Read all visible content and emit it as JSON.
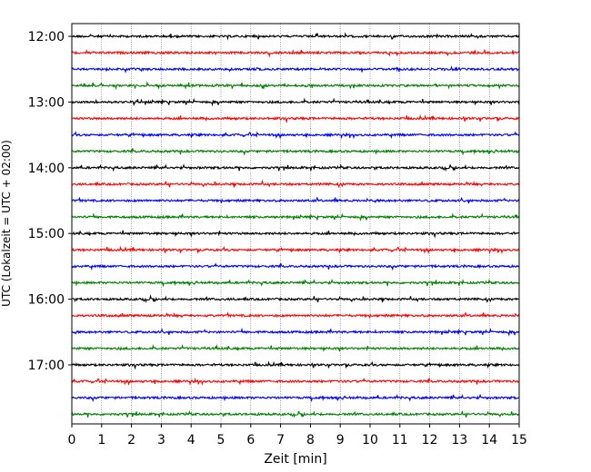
{
  "chart_data": {
    "type": "line",
    "title": "",
    "xlabel": "Zeit  [min]",
    "ylabel": "UTC (Lokalzeit = UTC + 02:00)",
    "xlim": [
      0,
      15
    ],
    "x_ticks": [
      0,
      1,
      2,
      3,
      4,
      5,
      6,
      7,
      8,
      9,
      10,
      11,
      12,
      13,
      14,
      15
    ],
    "x_grid": true,
    "y_ticks": [
      "12:00",
      "13:00",
      "14:00",
      "15:00",
      "16:00",
      "17:00"
    ],
    "trace_interval_minutes": 15,
    "trace_count": 24,
    "trace_colors": [
      "#000000",
      "#ff0000",
      "#0000ff",
      "#008000"
    ],
    "traces": [
      {
        "start": "12:00",
        "color": "#000000"
      },
      {
        "start": "12:15",
        "color": "#ff0000"
      },
      {
        "start": "12:30",
        "color": "#0000ff"
      },
      {
        "start": "12:45",
        "color": "#008000"
      },
      {
        "start": "13:00",
        "color": "#000000"
      },
      {
        "start": "13:15",
        "color": "#ff0000"
      },
      {
        "start": "13:30",
        "color": "#0000ff"
      },
      {
        "start": "13:45",
        "color": "#008000"
      },
      {
        "start": "14:00",
        "color": "#000000"
      },
      {
        "start": "14:15",
        "color": "#ff0000"
      },
      {
        "start": "14:30",
        "color": "#0000ff"
      },
      {
        "start": "14:45",
        "color": "#008000"
      },
      {
        "start": "15:00",
        "color": "#000000"
      },
      {
        "start": "15:15",
        "color": "#ff0000"
      },
      {
        "start": "15:30",
        "color": "#0000ff"
      },
      {
        "start": "15:45",
        "color": "#008000"
      },
      {
        "start": "16:00",
        "color": "#000000"
      },
      {
        "start": "16:15",
        "color": "#ff0000"
      },
      {
        "start": "16:30",
        "color": "#0000ff"
      },
      {
        "start": "16:45",
        "color": "#008000"
      },
      {
        "start": "17:00",
        "color": "#000000"
      },
      {
        "start": "17:15",
        "color": "#ff0000"
      },
      {
        "start": "17:30",
        "color": "#0000ff"
      },
      {
        "start": "17:45",
        "color": "#008000"
      }
    ]
  }
}
